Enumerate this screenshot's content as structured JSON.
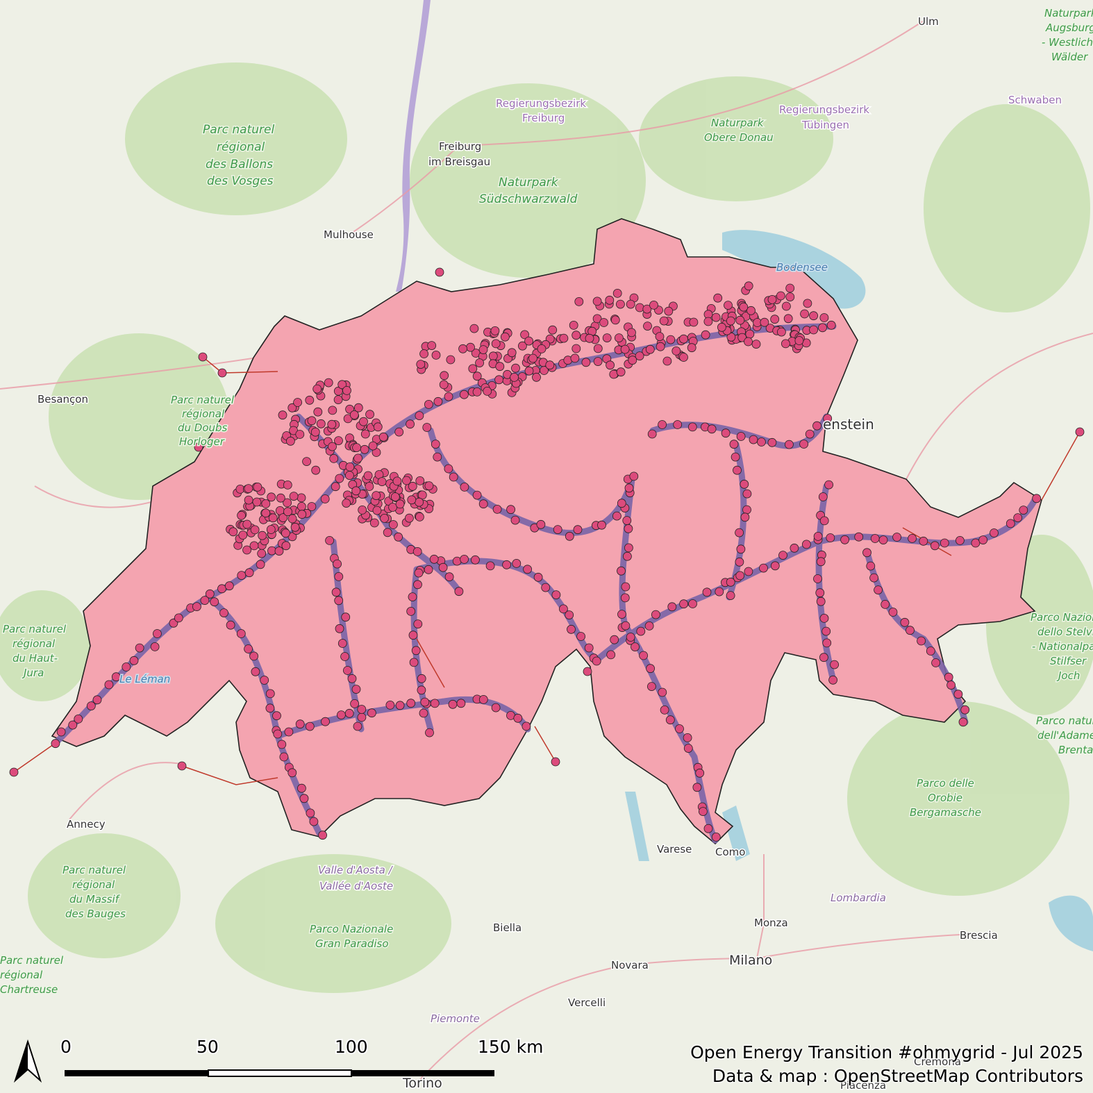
{
  "map": {
    "places": [
      {
        "name": "Ulm",
        "kind": "place"
      },
      {
        "name": "Freiburg",
        "kind": "place"
      },
      {
        "name": "im Breisgau",
        "kind": "place"
      },
      {
        "name": "Mulhouse",
        "kind": "place"
      },
      {
        "name": "Besançon",
        "kind": "place"
      },
      {
        "name": "Annecy",
        "kind": "place"
      },
      {
        "name": "Varese",
        "kind": "place"
      },
      {
        "name": "Como",
        "kind": "place"
      },
      {
        "name": "Biella",
        "kind": "place"
      },
      {
        "name": "Monza",
        "kind": "place"
      },
      {
        "name": "Brescia",
        "kind": "place"
      },
      {
        "name": "Novara",
        "kind": "place"
      },
      {
        "name": "Milano",
        "kind": "place"
      },
      {
        "name": "Vercelli",
        "kind": "place"
      },
      {
        "name": "Torino",
        "kind": "place"
      },
      {
        "name": "Cremona",
        "kind": "place"
      },
      {
        "name": "Piacenza",
        "kind": "place"
      },
      {
        "name": "enstein",
        "kind": "place"
      }
    ],
    "regions": [
      "Regierungsbezirk",
      "Freiburg",
      "Regierungsbezirk",
      "Tübingen",
      "Schwaben",
      "Valle d'Aosta /",
      "Vallée d'Aoste",
      "Lombardia",
      "Piemonte"
    ],
    "parks": [
      "Parc naturel",
      "régional",
      "des Ballons",
      "des Vosges",
      "Naturpark",
      "Südschwarzwald",
      "Naturpark",
      "Obere Donau",
      "Parc naturel",
      "régional",
      "du Doubs",
      "Horloger",
      "Parc naturel",
      "régional",
      "du Haut-",
      "Jura",
      "Parc naturel",
      "régional",
      "du Massif",
      "des Bauges",
      "Parco Nazionale",
      "Gran Paradiso",
      "Parco delle",
      "Orobie",
      "Bergamasche",
      "Parco Nazionale",
      "dello Stelvio",
      "- Nationalpark",
      "Stilfser",
      "Joch",
      "Parco naturale",
      "dell'Adamello",
      "Brenta",
      "Naturpark",
      "Augsburg",
      "- Westliche",
      "Wälder",
      "Parc naturel",
      "régional",
      "Chartreuse"
    ],
    "water": [
      "Le Léman",
      "Bodensee"
    ],
    "colors": {
      "country_fill": "#f4a4b0",
      "substation_fill": "#dc4b7c",
      "tower_fill": "#8a70b8",
      "outline": "#222222",
      "power_line": "#c0392b"
    }
  },
  "scale": {
    "labels": [
      "0",
      "50",
      "100",
      "150 km"
    ],
    "ticks_km": [
      0,
      50,
      100,
      150
    ]
  },
  "north_arrow_icon": "north-arrow-icon",
  "credits": {
    "title": "Open Energy Transition #ohmygrid - Jul 2025",
    "source": "Data & map : OpenStreetMap Contributors"
  }
}
